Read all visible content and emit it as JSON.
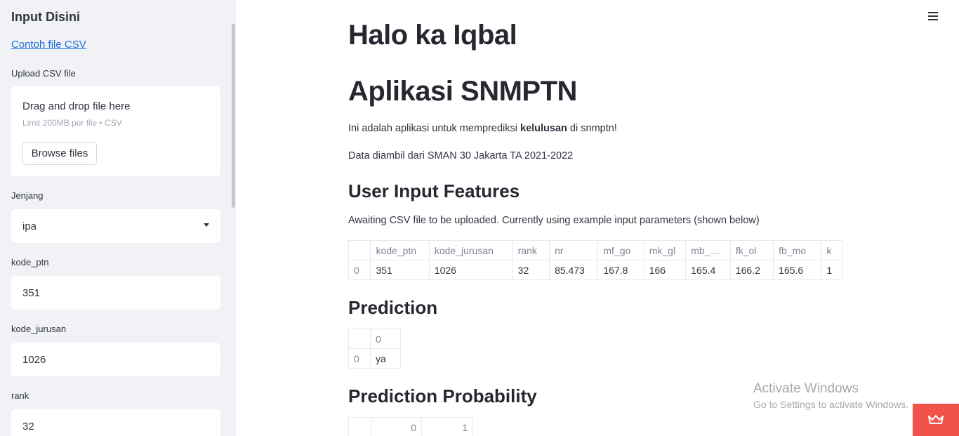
{
  "sidebar": {
    "title": "Input Disini",
    "example_link": "Contoh file CSV",
    "upload": {
      "label": "Upload CSV file",
      "drag_text": "Drag and drop file here",
      "limit_text": "Limit 200MB per file • CSV",
      "browse_label": "Browse files"
    },
    "jenjang": {
      "label": "Jenjang",
      "value": "ipa"
    },
    "kode_ptn": {
      "label": "kode_ptn",
      "value": "351"
    },
    "kode_jurusan": {
      "label": "kode_jurusan",
      "value": "1026"
    },
    "rank": {
      "label": "rank",
      "value": "32"
    }
  },
  "main": {
    "greeting": "Halo ka Iqbal",
    "app_title": "Aplikasi SNMPTN",
    "intro_prefix": "Ini adalah aplikasi untuk memprediksi ",
    "intro_bold": "kelulusan",
    "intro_suffix": " di snmptn!",
    "data_source": "Data diambil dari SMAN 30 Jakarta TA 2021-2022",
    "features_heading": "User Input Features",
    "features_note": "Awaiting CSV file to be uploaded. Currently using example input parameters (shown below)",
    "features_table": {
      "columns": [
        "",
        "kode_ptn",
        "kode_jurusan",
        "rank",
        "nr",
        "mf_go",
        "mk_gl",
        "mb_…",
        "fk_ol",
        "fb_mo",
        "k"
      ],
      "row": [
        "0",
        "351",
        "1026",
        "32",
        "85.473",
        "167.8",
        "166",
        "165.4",
        "166.2",
        "165.6",
        "1"
      ]
    },
    "prediction_heading": "Prediction",
    "prediction_table": {
      "columns": [
        "",
        "0"
      ],
      "row": [
        "0",
        "ya"
      ]
    },
    "probability_heading": "Prediction Probability",
    "probability_table": {
      "columns": [
        "",
        "0",
        "1"
      ]
    }
  },
  "watermark": {
    "line1": "Activate Windows",
    "line2": "Go to Settings to activate Windows."
  },
  "icons": {
    "menu": "hamburger-menu-icon",
    "badge": "crown-icon",
    "select_caret": "caret-down-icon"
  },
  "colors": {
    "sidebar_bg": "#f0f2f6",
    "link": "#1a6ed8",
    "badge": "#f0534a"
  }
}
